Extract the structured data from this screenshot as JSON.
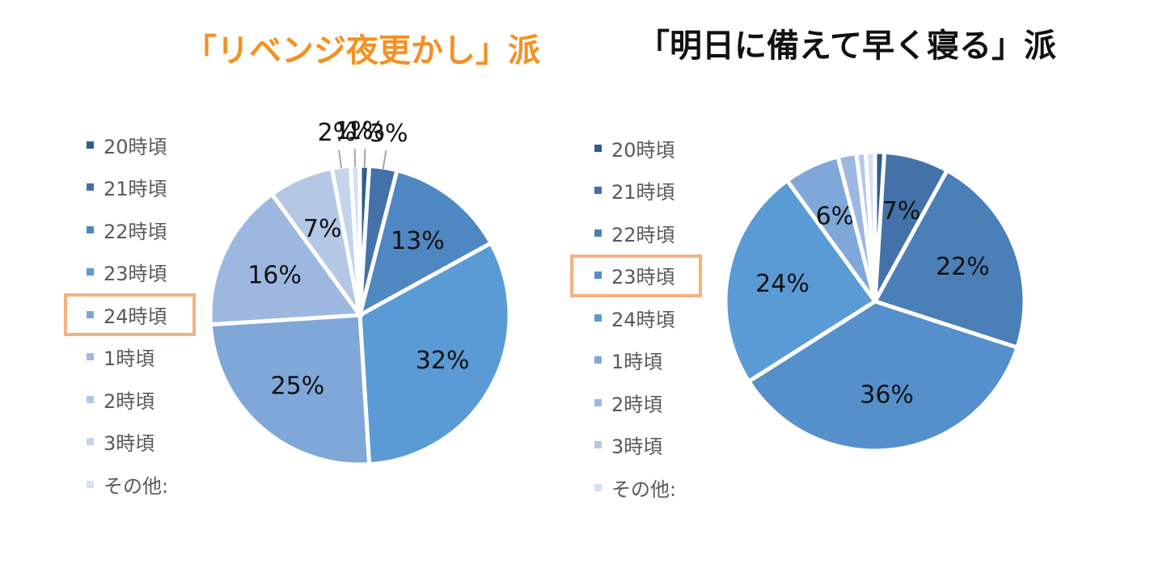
{
  "charts": [
    {
      "title": "「リベンジ夜更かし」派",
      "title_color": "#f39123",
      "highlight_index": 4,
      "legend": [
        "20時頃",
        "21時頃",
        "22時頃",
        "23時頃",
        "24時頃",
        "1時頃",
        "2時頃",
        "3時頃",
        "その他:"
      ]
    },
    {
      "title": "「明日に備えて早く寝る」派",
      "title_color": "#111111",
      "highlight_index": 3,
      "legend": [
        "20時頃",
        "21時頃",
        "22時頃",
        "23時頃",
        "24時頃",
        "1時頃",
        "2時頃",
        "3時頃",
        "その他:"
      ]
    }
  ],
  "chart_data": [
    {
      "type": "pie",
      "title": "「リベンジ夜更かし」派",
      "categories": [
        "20時頃",
        "21時頃",
        "22時頃",
        "23時頃",
        "24時頃",
        "1時頃",
        "2時頃",
        "3時頃",
        "その他:"
      ],
      "values": [
        1,
        3,
        13,
        32,
        25,
        16,
        7,
        2,
        1
      ],
      "labels": [
        "1%",
        "3%",
        "13%",
        "32%",
        "25%",
        "16%",
        "7%",
        "2%",
        "1%"
      ],
      "colors": [
        "#2f5d8a",
        "#4472a8",
        "#4f87c2",
        "#5b9bd5",
        "#7fa8d8",
        "#9db8e0",
        "#b4c8e6",
        "#c4d4ec",
        "#d5e1f2"
      ],
      "legend_position": "left"
    },
    {
      "type": "pie",
      "title": "「明日に備えて早く寝る」派",
      "categories": [
        "20時頃",
        "21時頃",
        "22時頃",
        "23時頃",
        "24時頃",
        "1時頃",
        "2時頃",
        "3時頃",
        "その他:"
      ],
      "values": [
        1,
        7,
        22,
        36,
        24,
        6,
        2,
        1,
        1
      ],
      "labels": [
        "",
        "7%",
        "22%",
        "36%",
        "24%",
        "6%",
        "",
        "",
        ""
      ],
      "colors": [
        "#2f5d8a",
        "#4472a8",
        "#4a7fb8",
        "#5590cc",
        "#5b9bd5",
        "#7fa8d8",
        "#9db8e0",
        "#b4c8e6",
        "#d5e1f2"
      ],
      "legend_position": "left"
    }
  ]
}
